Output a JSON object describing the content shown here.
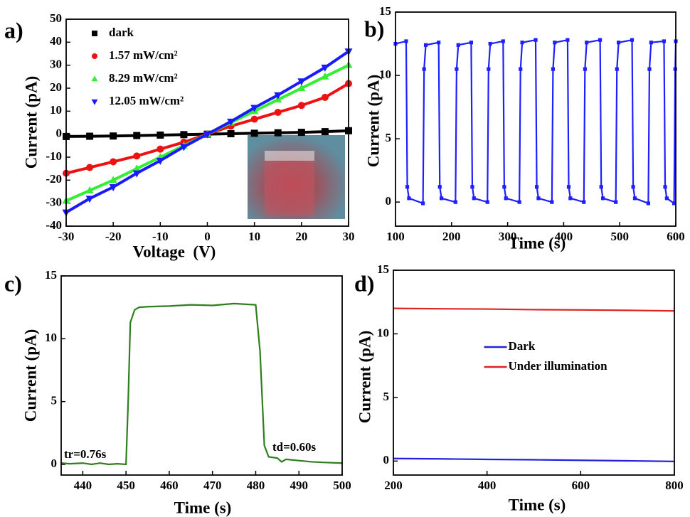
{
  "chart_data": [
    {
      "type": "line",
      "label": "a)",
      "xlabel": "Voltage  (V)",
      "ylabel": "Current (pA)",
      "x": [
        -30,
        -25,
        -20,
        -15,
        -10,
        -5,
        0,
        5,
        10,
        15,
        20,
        25,
        30
      ],
      "series": [
        {
          "name": "dark",
          "color": "#000000",
          "marker": "square",
          "values": [
            -1,
            -0.9,
            -0.8,
            -0.6,
            -0.4,
            -0.2,
            0,
            0.2,
            0.4,
            0.6,
            0.8,
            1.1,
            1.5
          ]
        },
        {
          "name": "1.57 mW/cm²",
          "color": "#ee1111",
          "marker": "circle",
          "values": [
            -17,
            -14.5,
            -12,
            -9.5,
            -6.5,
            -3.5,
            0,
            3.5,
            6.5,
            9.5,
            12.5,
            16,
            22
          ]
        },
        {
          "name": "8.29 mW/cm²",
          "color": "#33ee33",
          "marker": "triangle-up",
          "values": [
            -29,
            -24.5,
            -20,
            -15,
            -10,
            -5,
            0,
            5,
            10,
            15,
            20,
            25,
            30
          ]
        },
        {
          "name": "12.05 mW/cm²",
          "color": "#1a1aff",
          "marker": "triangle-down",
          "values": [
            -34,
            -28,
            -23,
            -17,
            -11.5,
            -5.5,
            0,
            5.5,
            11.5,
            17,
            23,
            29,
            36
          ]
        }
      ],
      "xlim": [
        -30,
        30
      ],
      "xticks": [
        -30,
        -20,
        -10,
        0,
        10,
        20,
        30
      ],
      "ylim": [
        -40,
        50
      ],
      "yticks": [
        -40,
        -30,
        -20,
        -10,
        0,
        10,
        20,
        30,
        40,
        50
      ],
      "legend": "upper left"
    },
    {
      "type": "line",
      "label": "b)",
      "xlabel": "Time (s)",
      "ylabel": "Current (pA)",
      "x": [
        100,
        119,
        121,
        124,
        149,
        151,
        154,
        177,
        179,
        182,
        207,
        209,
        212,
        235,
        237,
        240,
        264,
        266,
        269,
        292,
        294,
        297,
        321,
        323,
        326,
        350,
        352,
        355,
        379,
        381,
        384,
        407,
        409,
        412,
        436,
        438,
        441,
        465,
        467,
        470,
        493,
        495,
        498,
        522,
        524,
        527,
        551,
        553,
        556,
        579,
        581,
        584,
        597,
        599,
        600
      ],
      "series": [
        {
          "name": null,
          "color": "#1f1fff",
          "marker": "square",
          "values": [
            12.5,
            12.7,
            1.2,
            0.3,
            -0.1,
            10.5,
            12.4,
            12.6,
            1.2,
            0.3,
            0,
            10.5,
            12.4,
            12.6,
            1.2,
            0.3,
            0,
            10.5,
            12.5,
            12.7,
            1.2,
            0.3,
            0,
            10.5,
            12.6,
            12.8,
            1.2,
            0.3,
            0,
            10.5,
            12.6,
            12.8,
            1.2,
            0.3,
            0,
            10.5,
            12.6,
            12.8,
            1.2,
            0.3,
            0,
            10.5,
            12.6,
            12.8,
            1.2,
            0.3,
            -0.1,
            10.5,
            12.6,
            12.7,
            1.2,
            0.3,
            -0.1,
            10.5,
            12.7
          ]
        }
      ],
      "xlim": [
        100,
        600
      ],
      "xticks": [
        100,
        200,
        300,
        400,
        500,
        600
      ],
      "ylim": [
        -1.9,
        15
      ],
      "yticks": [
        0,
        5,
        10,
        15
      ]
    },
    {
      "type": "line",
      "label": "c)",
      "xlabel": "Time (s)",
      "ylabel": "Current (pA)",
      "x": [
        435,
        437,
        440,
        442,
        444,
        446,
        448,
        450,
        450.5,
        451,
        452,
        453,
        455,
        460,
        465,
        470,
        475,
        480,
        481,
        482,
        483,
        485,
        486,
        487,
        490,
        493,
        496,
        500
      ],
      "series": [
        {
          "name": null,
          "color": "#2e7d1e",
          "values": [
            0.1,
            0.05,
            0.1,
            0,
            0.1,
            0,
            0.05,
            0,
            5,
            11.3,
            12.3,
            12.5,
            12.55,
            12.6,
            12.7,
            12.65,
            12.8,
            12.7,
            9,
            1.5,
            0.6,
            0.5,
            0.2,
            0.4,
            0.3,
            0.2,
            0.15,
            0.1
          ]
        }
      ],
      "xlim": [
        435,
        500
      ],
      "xticks": [
        440,
        450,
        460,
        470,
        480,
        490,
        500
      ],
      "ylim": [
        -0.85,
        15
      ],
      "yticks": [
        0,
        5,
        10,
        15
      ],
      "annotations": [
        "tr=0.76s",
        "td=0.60s"
      ]
    },
    {
      "type": "line",
      "label": "d)",
      "xlabel": "Time (s)",
      "ylabel": "Current (pA)",
      "x": [
        200,
        300,
        400,
        500,
        600,
        700,
        800
      ],
      "series": [
        {
          "name": "Dark",
          "color": "#2222dd",
          "values": [
            0.2,
            0.17,
            0.13,
            0.1,
            0.06,
            0.02,
            -0.03
          ]
        },
        {
          "name": "Under illumination",
          "color": "#dd2222",
          "values": [
            12,
            11.97,
            11.95,
            11.9,
            11.88,
            11.85,
            11.8
          ]
        }
      ],
      "xlim": [
        200,
        800
      ],
      "xticks": [
        200,
        400,
        600,
        800
      ],
      "ylim": [
        -1.1,
        15
      ],
      "yticks": [
        0,
        5,
        10,
        15
      ],
      "legend": "center"
    }
  ]
}
